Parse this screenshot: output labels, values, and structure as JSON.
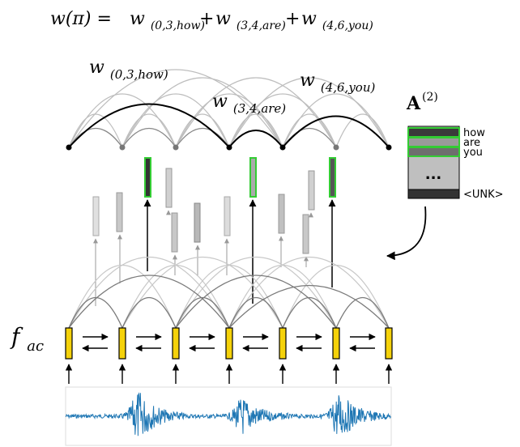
{
  "equation": {
    "lhs": "w(π) = ",
    "terms": [
      {
        "base": "w",
        "sub": "(0,3,how)"
      },
      {
        "base": "w",
        "sub": "(3,4,are)"
      },
      {
        "base": "w",
        "sub": "(4,6,you)"
      }
    ],
    "plus": "+"
  },
  "arc_labels": [
    {
      "base": "w",
      "sub": "(0,3,how)"
    },
    {
      "base": "w",
      "sub": "(3,4,are)"
    },
    {
      "base": "w",
      "sub": "(4,6,you)"
    }
  ],
  "matrix": {
    "title": "A",
    "superscript": "(2)",
    "rows": [
      "how",
      "are",
      "you"
    ],
    "ellipsis": "...",
    "unk": "<UNK>"
  },
  "acoustic_label": {
    "base": "f",
    "sub": "ac"
  },
  "colors": {
    "highlight_green": "#33cc33",
    "rnn_cell_yellow": "#f5d20a",
    "waveform_blue": "#1f77b4",
    "dark_arc": "#000000",
    "light_arc": "#b8b8b8"
  }
}
